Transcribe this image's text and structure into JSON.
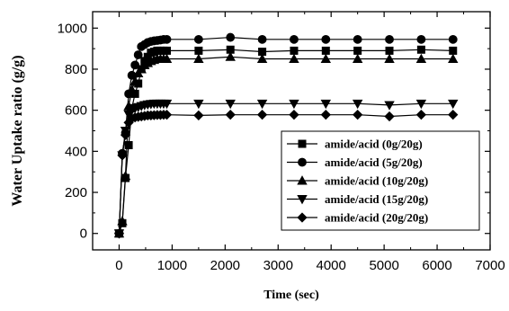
{
  "chart_data": {
    "type": "line",
    "title": "",
    "xlabel": "Time (sec)",
    "ylabel": "Water Uptake ratio (g/g)",
    "xlim": [
      -500,
      7000
    ],
    "ylim": [
      -80,
      1080
    ],
    "xticks": [
      0,
      1000,
      2000,
      3000,
      4000,
      5000,
      6000,
      7000
    ],
    "yticks": [
      0,
      200,
      400,
      600,
      800,
      1000
    ],
    "xtick_labels": [
      "0",
      "1000",
      "2000",
      "3000",
      "4000",
      "5000",
      "6000",
      "7000"
    ],
    "ytick_labels": [
      "0",
      "200",
      "400",
      "600",
      "800",
      "1000"
    ],
    "grid": false,
    "legend_position": "lower-right",
    "series": [
      {
        "name": "amide/acid (0g/20g)",
        "marker": "square",
        "x": [
          0,
          60,
          120,
          180,
          240,
          300,
          360,
          420,
          480,
          540,
          600,
          660,
          720,
          780,
          840,
          900,
          1500,
          2100,
          2700,
          3300,
          3900,
          4500,
          5100,
          5700,
          6300
        ],
        "y": [
          0,
          50,
          270,
          430,
          610,
          680,
          730,
          800,
          840,
          860,
          880,
          885,
          890,
          890,
          890,
          890,
          890,
          895,
          885,
          890,
          890,
          890,
          890,
          895,
          890
        ]
      },
      {
        "name": "amide/acid (5g/20g)",
        "marker": "circle",
        "x": [
          0,
          60,
          120,
          180,
          240,
          300,
          360,
          420,
          480,
          540,
          600,
          660,
          720,
          780,
          840,
          900,
          1500,
          2100,
          2700,
          3300,
          3900,
          4500,
          5100,
          5700,
          6300
        ],
        "y": [
          0,
          390,
          490,
          680,
          770,
          820,
          870,
          910,
          920,
          930,
          935,
          938,
          940,
          942,
          945,
          945,
          945,
          955,
          945,
          945,
          945,
          945,
          945,
          945,
          945
        ]
      },
      {
        "name": "amide/acid (10g/20g)",
        "marker": "triangle-up",
        "x": [
          0,
          60,
          120,
          180,
          240,
          300,
          360,
          420,
          480,
          540,
          600,
          660,
          720,
          780,
          840,
          900,
          1500,
          2100,
          2700,
          3300,
          3900,
          4500,
          5100,
          5700,
          6300
        ],
        "y": [
          0,
          60,
          280,
          620,
          700,
          740,
          780,
          800,
          820,
          830,
          840,
          845,
          850,
          850,
          850,
          850,
          850,
          860,
          850,
          850,
          850,
          850,
          850,
          850,
          850
        ]
      },
      {
        "name": "amide/acid (15g/20g)",
        "marker": "triangle-down",
        "x": [
          0,
          60,
          120,
          180,
          240,
          300,
          360,
          420,
          480,
          540,
          600,
          660,
          720,
          780,
          840,
          900,
          1500,
          2100,
          2700,
          3300,
          3900,
          4500,
          5100,
          5700,
          6300
        ],
        "y": [
          0,
          380,
          500,
          580,
          600,
          610,
          615,
          620,
          625,
          628,
          630,
          632,
          632,
          632,
          632,
          632,
          632,
          632,
          632,
          632,
          632,
          632,
          625,
          632,
          632
        ]
      },
      {
        "name": "amide/acid (20g/20g)",
        "marker": "diamond",
        "x": [
          0,
          60,
          120,
          180,
          240,
          300,
          360,
          420,
          480,
          540,
          600,
          660,
          720,
          780,
          840,
          900,
          1500,
          2100,
          2700,
          3300,
          3900,
          4500,
          5100,
          5700,
          6300
        ],
        "y": [
          0,
          380,
          480,
          540,
          560,
          565,
          568,
          570,
          572,
          575,
          575,
          576,
          577,
          577,
          578,
          578,
          575,
          578,
          578,
          578,
          578,
          578,
          570,
          578,
          578
        ]
      }
    ]
  }
}
